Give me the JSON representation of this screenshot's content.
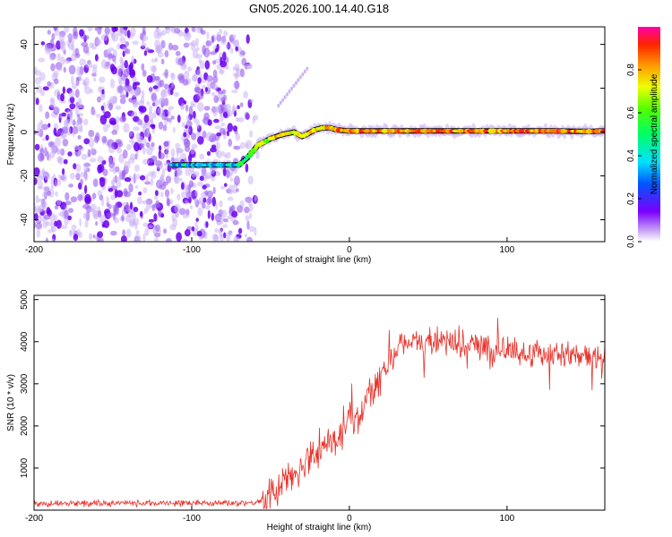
{
  "title": "GN05.2026.100.14.40.G18",
  "chart_data": [
    {
      "type": "heatmap",
      "xlabel": "Height of straight line (km)",
      "ylabel": "Frequency (Hz)",
      "xlim": [
        -200,
        162
      ],
      "ylim": [
        -50,
        48
      ],
      "xticks": [
        -200,
        -100,
        0,
        100
      ],
      "yticks": [
        -40,
        -20,
        0,
        20,
        40
      ],
      "noise_region_x": [
        -200,
        -57
      ],
      "ridge": {
        "x": [
          -112,
          -70,
          -65,
          -58,
          -50,
          -42,
          -35,
          -30,
          -27,
          -22,
          -17,
          -12,
          -8,
          0,
          20,
          60,
          100,
          130,
          150,
          162
        ],
        "y": [
          -15,
          -15,
          -12,
          -6,
          -3,
          -1,
          0,
          -2,
          -1,
          1,
          2,
          2,
          1,
          0.5,
          0.5,
          0.5,
          0.5,
          0.5,
          0.3,
          0.5
        ]
      },
      "colorbar": {
        "label": "Normalized spectral amplitude",
        "ticks": [
          "0.0",
          "0.2",
          "0.4",
          "0.6",
          "0.8"
        ],
        "tick_values": [
          0,
          0.2,
          0.4,
          0.6,
          0.8
        ],
        "range": [
          0,
          1
        ]
      }
    },
    {
      "type": "line",
      "xlabel": "Height of straight line (km)",
      "ylabel": "SNR (10 * v/v)",
      "xlim": [
        -200,
        162
      ],
      "ylim": [
        0,
        5100
      ],
      "xticks": [
        -200,
        -100,
        0,
        100
      ],
      "yticks": [
        1000,
        2000,
        3000,
        4000,
        5000
      ],
      "color": "#e8322a",
      "trend": {
        "x": [
          -200,
          -60,
          -50,
          -40,
          -30,
          -20,
          -10,
          0,
          10,
          20,
          30,
          40,
          60,
          100,
          130,
          162
        ],
        "y": [
          150,
          180,
          300,
          700,
          1100,
          1500,
          1600,
          2000,
          2500,
          3200,
          3800,
          4000,
          4000,
          3800,
          3700,
          3600
        ]
      }
    }
  ]
}
